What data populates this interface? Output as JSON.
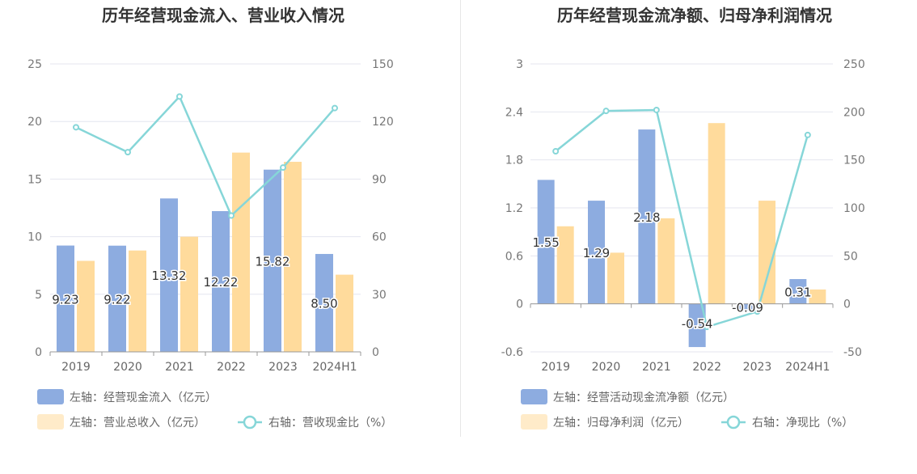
{
  "colors": {
    "bar_primary": "#8dace0",
    "bar_secondary": "#ffdb9c",
    "line": "#86d6d8",
    "grid": "#e4e6ef",
    "axis": "#999999"
  },
  "chart_data": [
    {
      "type": "bar",
      "title": "历年经营现金流入、营业收入情况",
      "categories": [
        "2019",
        "2020",
        "2021",
        "2022",
        "2023",
        "2024H1"
      ],
      "y_left": {
        "min": 0,
        "max": 25,
        "ticks": [
          "0",
          "5",
          "10",
          "15",
          "20",
          "25"
        ]
      },
      "y_right": {
        "min": 0,
        "max": 150,
        "ticks": [
          "0",
          "30",
          "60",
          "90",
          "120",
          "150"
        ]
      },
      "grid": true,
      "legend_position": "bottom",
      "series": [
        {
          "name": "左轴：经营现金流入（亿元）",
          "type": "bar",
          "axis": "left",
          "values": [
            9.23,
            9.22,
            13.32,
            12.22,
            15.82,
            8.5
          ],
          "labels": [
            "9.23",
            "9.22",
            "13.32",
            "12.22",
            "15.82",
            "8.50"
          ]
        },
        {
          "name": "左轴：营业总收入（亿元）",
          "type": "bar",
          "axis": "left",
          "values": [
            7.9,
            8.8,
            10.0,
            17.3,
            16.5,
            6.7
          ]
        },
        {
          "name": "右轴：营收现金比（%）",
          "type": "line",
          "axis": "right",
          "values": [
            117,
            104,
            133,
            71,
            96,
            127
          ]
        }
      ]
    },
    {
      "type": "bar",
      "title": "历年经营现金流净额、归母净利润情况",
      "categories": [
        "2019",
        "2020",
        "2021",
        "2022",
        "2023",
        "2024H1"
      ],
      "y_left": {
        "min": -0.6,
        "max": 3,
        "ticks": [
          "-0.6",
          "0",
          "0.6",
          "1.2",
          "1.8",
          "2.4",
          "3"
        ]
      },
      "y_right": {
        "min": -50,
        "max": 250,
        "ticks": [
          "-50",
          "0",
          "50",
          "100",
          "150",
          "200",
          "250"
        ]
      },
      "grid": true,
      "legend_position": "bottom",
      "series": [
        {
          "name": "左轴：经营活动现金流净额（亿元）",
          "type": "bar",
          "axis": "left",
          "values": [
            1.55,
            1.29,
            2.18,
            -0.54,
            -0.09,
            0.31
          ],
          "labels": [
            "1.55",
            "1.29",
            "2.18",
            "-0.54",
            "-0.09",
            "0.31"
          ]
        },
        {
          "name": "左轴：归母净利润（亿元）",
          "type": "bar",
          "axis": "left",
          "values": [
            0.97,
            0.64,
            1.07,
            2.26,
            1.29,
            0.18
          ]
        },
        {
          "name": "右轴：净现比（%）",
          "type": "line",
          "axis": "right",
          "values": [
            159,
            201,
            202,
            -24,
            -8,
            176
          ]
        }
      ]
    }
  ]
}
